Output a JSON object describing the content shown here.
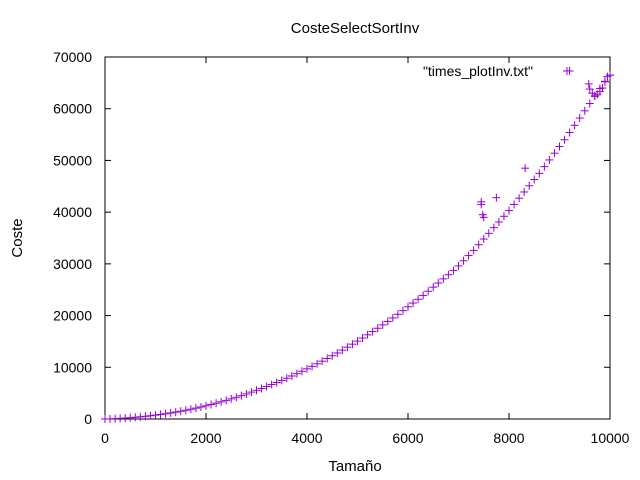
{
  "chart_data": {
    "type": "scatter",
    "title": "CosteSelectSortInv",
    "xlabel": "Tamaño",
    "ylabel": "Coste",
    "xlim": [
      0,
      10000
    ],
    "ylim": [
      0,
      70000
    ],
    "x_ticks": [
      "0",
      "2000",
      "4000",
      "6000",
      "8000",
      "10000"
    ],
    "y_ticks": [
      "0",
      "10000",
      "20000",
      "30000",
      "40000",
      "50000",
      "60000",
      "70000"
    ],
    "legend_position": "top-right",
    "grid": false,
    "marker": "plus",
    "series": [
      {
        "name": "\"times_plotInv.txt\"",
        "color": "#9400d3",
        "points": [
          [
            0,
            0
          ],
          [
            100,
            20
          ],
          [
            200,
            60
          ],
          [
            300,
            120
          ],
          [
            400,
            180
          ],
          [
            500,
            250
          ],
          [
            600,
            330
          ],
          [
            700,
            420
          ],
          [
            800,
            520
          ],
          [
            900,
            630
          ],
          [
            1000,
            750
          ],
          [
            1100,
            880
          ],
          [
            1200,
            1020
          ],
          [
            1300,
            1170
          ],
          [
            1400,
            1330
          ],
          [
            1500,
            1500
          ],
          [
            1600,
            1690
          ],
          [
            1700,
            1890
          ],
          [
            1800,
            2100
          ],
          [
            1900,
            2320
          ],
          [
            2000,
            2550
          ],
          [
            2100,
            2800
          ],
          [
            2200,
            3050
          ],
          [
            2300,
            3320
          ],
          [
            2400,
            3600
          ],
          [
            2500,
            3900
          ],
          [
            2600,
            4200
          ],
          [
            2700,
            4520
          ],
          [
            2800,
            4850
          ],
          [
            2900,
            5200
          ],
          [
            3000,
            5550
          ],
          [
            3100,
            5900
          ],
          [
            3200,
            6280
          ],
          [
            3300,
            6660
          ],
          [
            3400,
            7060
          ],
          [
            3500,
            7470
          ],
          [
            3600,
            7890
          ],
          [
            3700,
            8320
          ],
          [
            3800,
            8770
          ],
          [
            3900,
            9230
          ],
          [
            4000,
            9700
          ],
          [
            4100,
            10180
          ],
          [
            4200,
            10670
          ],
          [
            4300,
            11180
          ],
          [
            4400,
            11700
          ],
          [
            4500,
            12230
          ],
          [
            4600,
            12770
          ],
          [
            4700,
            13320
          ],
          [
            4800,
            13890
          ],
          [
            4900,
            14470
          ],
          [
            5000,
            15060
          ],
          [
            5100,
            15660
          ],
          [
            5200,
            16280
          ],
          [
            5300,
            16910
          ],
          [
            5400,
            17550
          ],
          [
            5500,
            18200
          ],
          [
            5600,
            18870
          ],
          [
            5700,
            19550
          ],
          [
            5800,
            20240
          ],
          [
            5900,
            20950
          ],
          [
            6000,
            21700
          ],
          [
            6100,
            22420
          ],
          [
            6200,
            23150
          ],
          [
            6300,
            23900
          ],
          [
            6400,
            24700
          ],
          [
            6500,
            25500
          ],
          [
            6600,
            26300
          ],
          [
            6700,
            27100
          ],
          [
            6800,
            27900
          ],
          [
            6900,
            28700
          ],
          [
            7000,
            29600
          ],
          [
            7100,
            30600
          ],
          [
            7200,
            31600
          ],
          [
            7300,
            32600
          ],
          [
            7400,
            33700
          ],
          [
            7500,
            34800
          ],
          [
            7600,
            35900
          ],
          [
            7700,
            37000
          ],
          [
            7800,
            38100
          ],
          [
            7900,
            39200
          ],
          [
            8000,
            40300
          ],
          [
            8100,
            41500
          ],
          [
            8200,
            42700
          ],
          [
            8300,
            43900
          ],
          [
            8400,
            45100
          ],
          [
            8500,
            46300
          ],
          [
            8600,
            47500
          ],
          [
            8700,
            48800
          ],
          [
            8800,
            50100
          ],
          [
            8900,
            51400
          ],
          [
            9000,
            52700
          ],
          [
            9100,
            54000
          ],
          [
            9200,
            55400
          ],
          [
            9300,
            56800
          ],
          [
            9400,
            58200
          ],
          [
            9500,
            59600
          ],
          [
            9600,
            61000
          ],
          [
            9700,
            62400
          ],
          [
            9800,
            63900
          ],
          [
            9900,
            65300
          ],
          [
            10000,
            66500
          ],
          [
            7450,
            41500
          ],
          [
            7450,
            42000
          ],
          [
            7480,
            39500
          ],
          [
            7500,
            39000
          ],
          [
            7750,
            42800
          ],
          [
            8320,
            48500
          ],
          [
            9200,
            67300
          ],
          [
            9580,
            64800
          ],
          [
            9600,
            63800
          ],
          [
            9650,
            63000
          ],
          [
            9700,
            62500
          ],
          [
            9750,
            62800
          ],
          [
            9800,
            63300
          ],
          [
            9850,
            64000
          ],
          [
            9900,
            65200
          ],
          [
            9950,
            66200
          ],
          [
            10000,
            66500
          ]
        ]
      }
    ]
  }
}
